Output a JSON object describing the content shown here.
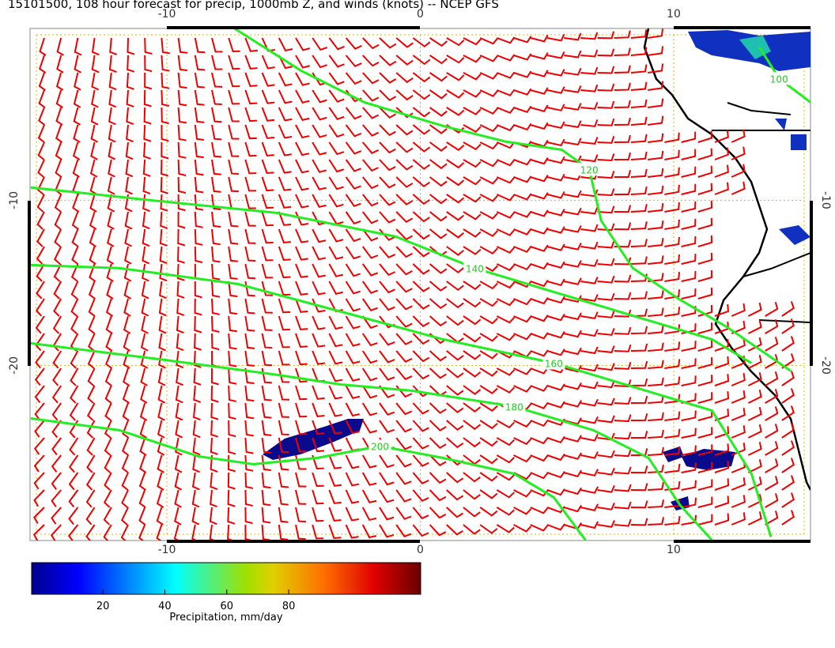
{
  "title": "15101500, 108 hour forecast for precip, 1000mb Z, and winds (knots) -- NCEP GFS",
  "map": {
    "xlim": [
      -15.4,
      15.4
    ],
    "ylim": [
      -30.6,
      0.4
    ],
    "xticks": [
      -10,
      0,
      10
    ],
    "yticks": [
      -10,
      -20
    ]
  },
  "contours": [
    {
      "level": 100,
      "points": [
        [
          13.38,
          -0.72
        ],
        [
          14.16,
          -2.63
        ],
        [
          15.4,
          -4.07
        ]
      ]
    },
    {
      "level": 120,
      "points": [
        [
          -7.36,
          0.43
        ],
        [
          -4.71,
          -2.15
        ],
        [
          -2.21,
          -4.07
        ],
        [
          0.9,
          -5.5
        ],
        [
          3.4,
          -6.46
        ],
        [
          5.58,
          -6.94
        ],
        [
          6.67,
          -8.13
        ],
        [
          7.14,
          -11.24
        ],
        [
          8.39,
          -14.11
        ],
        [
          10.26,
          -16.03
        ],
        [
          12.13,
          -17.7
        ],
        [
          14.62,
          -20.33
        ]
      ]
    },
    {
      "level": 140,
      "points": [
        [
          -15.37,
          -9.23
        ],
        [
          -10.32,
          -10.05
        ],
        [
          -5.64,
          -10.77
        ],
        [
          -0.97,
          -12.2
        ],
        [
          2.15,
          -14.11
        ],
        [
          5.27,
          -15.55
        ],
        [
          8.39,
          -16.99
        ],
        [
          11.51,
          -18.42
        ],
        [
          13.07,
          -19.86
        ]
      ]
    },
    {
      "level": 160,
      "points": [
        [
          -15.37,
          -13.92
        ],
        [
          -11.88,
          -14.11
        ],
        [
          -7.2,
          -15.07
        ],
        [
          -2.53,
          -16.99
        ],
        [
          0.9,
          -18.42
        ],
        [
          5.27,
          -19.86
        ],
        [
          8.39,
          -21.29
        ],
        [
          11.51,
          -22.73
        ],
        [
          13.07,
          -26.56
        ],
        [
          13.84,
          -30.38
        ]
      ]
    },
    {
      "level": 180,
      "points": [
        [
          -15.37,
          -18.66
        ],
        [
          -10.32,
          -19.62
        ],
        [
          -5.64,
          -20.57
        ],
        [
          -3.15,
          -21.15
        ],
        [
          -0.34,
          -21.53
        ],
        [
          3.71,
          -22.49
        ],
        [
          6.83,
          -23.92
        ],
        [
          9.01,
          -25.6
        ],
        [
          10.26,
          -28.47
        ],
        [
          11.51,
          -30.57
        ]
      ]
    },
    {
      "level": 200,
      "points": [
        [
          -15.37,
          -23.21
        ],
        [
          -11.88,
          -23.92
        ],
        [
          -8.76,
          -25.5
        ],
        [
          -6.58,
          -25.98
        ],
        [
          -4.08,
          -25.6
        ],
        [
          -1.59,
          -24.88
        ],
        [
          0.9,
          -25.6
        ],
        [
          3.71,
          -26.56
        ],
        [
          5.27,
          -27.99
        ],
        [
          6.52,
          -30.57
        ]
      ]
    }
  ],
  "colorbar": {
    "label": "Precipitation, mm/day",
    "lim": [
      -3,
      122.6
    ],
    "ticks": [
      20,
      40,
      60,
      80
    ]
  }
}
